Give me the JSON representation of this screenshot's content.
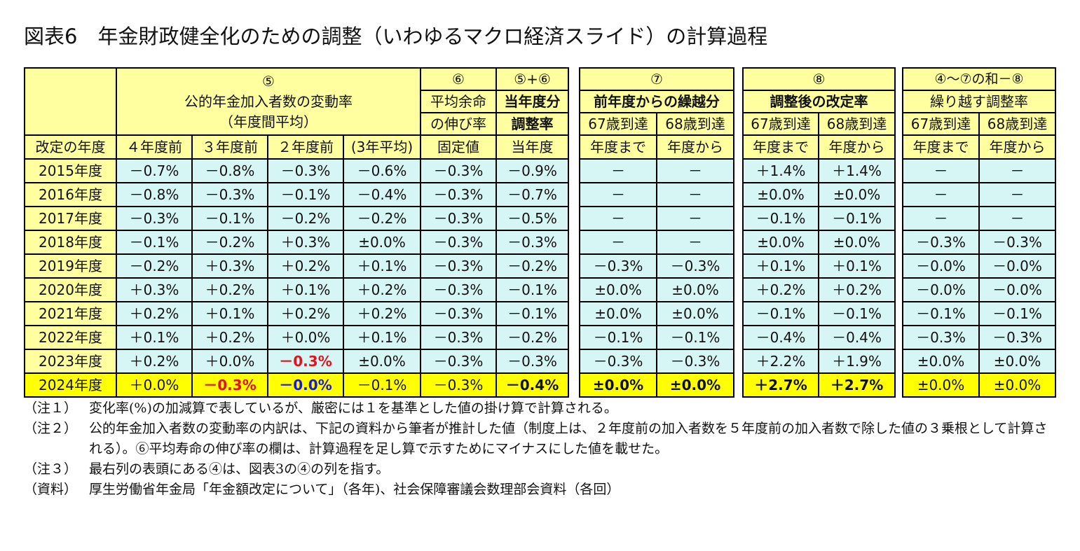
{
  "title": "図表6　年金財政健全化のための調整（いわゆるマクロ経済スライド）の計算過程",
  "header": {
    "col5_no": "⑤",
    "col5_name": "公的年金加入者数の変動率",
    "col5_sub": "（年度間平均）",
    "col6_no": "⑥",
    "col6_name1": "平均余命",
    "col6_name2": "の伸び率",
    "col56_no": "⑤+⑥",
    "col56_name1": "当年度分",
    "col56_name2": "調整率",
    "col7_no": "⑦",
    "col7_name": "前年度からの繰越分",
    "col8_no": "⑧",
    "col8_name": "調整後の改定率",
    "colc_no": "④～⑦の和－⑧",
    "colc_name": "繰り越す調整率",
    "year_label": "改定の年度",
    "sub_4": "４年度前",
    "sub_3": "３年度前",
    "sub_2": "２年度前",
    "sub_avg": "(3年平均)",
    "sub_fixed": "固定値",
    "sub_current": "当年度",
    "sub_67a": "67歳到達",
    "sub_67b": "年度まで",
    "sub_68a": "68歳到達",
    "sub_68b": "年度から"
  },
  "rows": [
    {
      "year": "2015年度",
      "v4": "－0.7%",
      "v3": "－0.8%",
      "v2": "－0.3%",
      "avg": "－0.6%",
      "life": "－0.3%",
      "adj": "－0.9%",
      "c67": "－",
      "c68": "－",
      "r67": "＋1.4%",
      "r68": "＋1.4%",
      "n67": "－",
      "n68": "－"
    },
    {
      "year": "2016年度",
      "v4": "－0.8%",
      "v3": "－0.3%",
      "v2": "－0.1%",
      "avg": "－0.4%",
      "life": "－0.3%",
      "adj": "－0.7%",
      "c67": "－",
      "c68": "－",
      "r67": "±0.0%",
      "r68": "±0.0%",
      "n67": "－",
      "n68": "－"
    },
    {
      "year": "2017年度",
      "v4": "－0.3%",
      "v3": "－0.1%",
      "v2": "－0.2%",
      "avg": "－0.2%",
      "life": "－0.3%",
      "adj": "－0.5%",
      "c67": "－",
      "c68": "－",
      "r67": "－0.1%",
      "r68": "－0.1%",
      "n67": "－",
      "n68": "－"
    },
    {
      "year": "2018年度",
      "v4": "－0.1%",
      "v3": "－0.2%",
      "v2": "＋0.3%",
      "avg": "±0.0%",
      "life": "－0.3%",
      "adj": "－0.3%",
      "c67": "－",
      "c68": "－",
      "r67": "±0.0%",
      "r68": "±0.0%",
      "n67": "－0.3%",
      "n68": "－0.3%"
    },
    {
      "year": "2019年度",
      "v4": "－0.2%",
      "v3": "＋0.3%",
      "v2": "＋0.2%",
      "avg": "＋0.1%",
      "life": "－0.3%",
      "adj": "－0.2%",
      "c67": "－0.3%",
      "c68": "－0.3%",
      "r67": "＋0.1%",
      "r68": "＋0.1%",
      "n67": "－0.0%",
      "n68": "－0.0%"
    },
    {
      "year": "2020年度",
      "v4": "＋0.3%",
      "v3": "＋0.2%",
      "v2": "＋0.1%",
      "avg": "＋0.2%",
      "life": "－0.3%",
      "adj": "－0.1%",
      "c67": "±0.0%",
      "c68": "±0.0%",
      "r67": "＋0.2%",
      "r68": "＋0.2%",
      "n67": "－0.0%",
      "n68": "－0.0%"
    },
    {
      "year": "2021年度",
      "v4": "＋0.2%",
      "v3": "＋0.1%",
      "v2": "＋0.2%",
      "avg": "＋0.2%",
      "life": "－0.3%",
      "adj": "－0.1%",
      "c67": "±0.0%",
      "c68": "±0.0%",
      "r67": "－0.1%",
      "r68": "－0.1%",
      "n67": "－0.1%",
      "n68": "－0.1%"
    },
    {
      "year": "2022年度",
      "v4": "＋0.1%",
      "v3": "＋0.2%",
      "v2": "＋0.0%",
      "avg": "＋0.1%",
      "life": "－0.3%",
      "adj": "－0.2%",
      "c67": "－0.1%",
      "c68": "－0.1%",
      "r67": "－0.4%",
      "r68": "－0.4%",
      "n67": "－0.3%",
      "n68": "－0.3%"
    },
    {
      "year": "2023年度",
      "v4": "＋0.2%",
      "v3": "＋0.0%",
      "v2": "－0.3%",
      "avg": "±0.0%",
      "life": "－0.3%",
      "adj": "－0.3%",
      "c67": "－0.3%",
      "c68": "－0.3%",
      "r67": "＋2.2%",
      "r68": "＋1.9%",
      "n67": "±0.0%",
      "n68": "±0.0%"
    },
    {
      "year": "2024年度",
      "v4": "＋0.0%",
      "v3": "－0.3%",
      "v2": "－0.0%",
      "avg": "－0.1%",
      "life": "－0.3%",
      "adj": "－0.4%",
      "c67": "±0.0%",
      "c68": "±0.0%",
      "r67": "＋2.7%",
      "r68": "＋2.7%",
      "n67": "±0.0%",
      "n68": "±0.0%"
    }
  ],
  "notes": [
    {
      "tag": "（注１）",
      "text": "変化率(%)の加減算で表しているが、厳密には１を基準とした値の掛け算で計算される。"
    },
    {
      "tag": "（注２）",
      "text": "公的年金加入者数の変動率の内訳は、下記の資料から筆者が推計した値（制度上は、２年度前の加入者数を５年度前の加入者数で除した値の３乗根として計算される）。⑥平均寿命の伸び率の欄は、計算過程を足し算で示すためにマイナスにした値を載せた。"
    },
    {
      "tag": "（注３）",
      "text": "最右列の表頭にある④は、図表3の④の列を指す。"
    },
    {
      "tag": "（資料）",
      "text": "厚生労働省年金局「年金額改定について」（各年)、社会保障審議会数理部会資料（各回）"
    }
  ],
  "colors": {
    "header_bg": "#ffffa0",
    "body_bg": "#d6f5f5",
    "highlight_row": "#ffff00",
    "red_text": "#e0141e",
    "blue_text": "#1a1ad8"
  }
}
